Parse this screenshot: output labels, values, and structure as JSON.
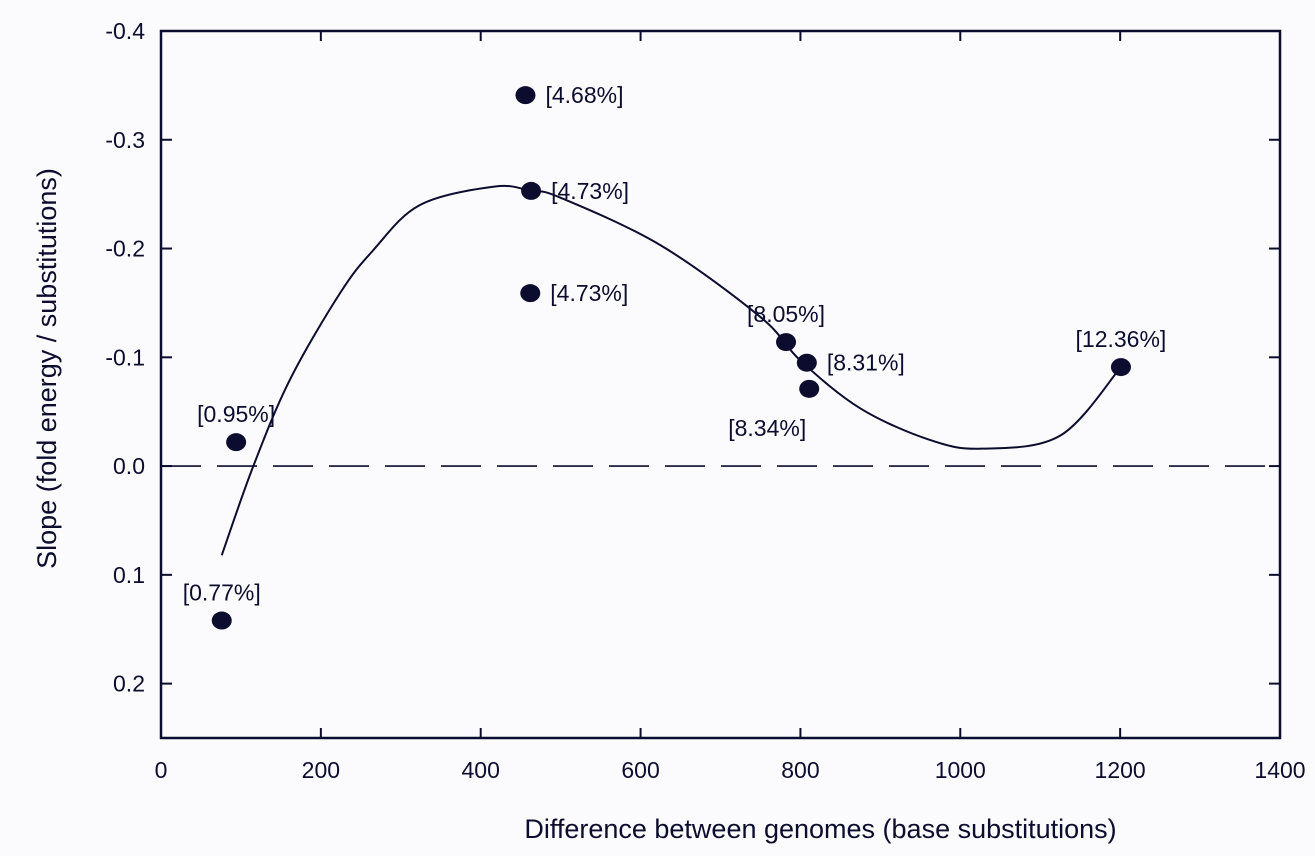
{
  "chart_data": {
    "type": "scatter",
    "title": "",
    "xlabel": "Difference between genomes (base substitutions)",
    "ylabel": "Slope (fold energy / substitutions)",
    "xlim": [
      0,
      1400
    ],
    "ylim": [
      0.25,
      -0.4
    ],
    "y_inverted": true,
    "x_ticks": [
      0,
      200,
      400,
      600,
      800,
      1000,
      1200,
      1400
    ],
    "x_tick_labels": [
      "0",
      "200",
      "400",
      "600",
      "800",
      "1000",
      "1200",
      "1400"
    ],
    "y_ticks": [
      -0.4,
      -0.3,
      -0.2,
      -0.1,
      0.0,
      0.1,
      0.2
    ],
    "y_tick_labels": [
      "-0.4",
      "-0.3",
      "-0.2",
      "-0.1",
      "0.0",
      "0.1",
      "0.2"
    ],
    "grid": false,
    "reference_line": {
      "y": 0.0,
      "style": "dashed"
    },
    "colors": {
      "ink": "#0c0c2e",
      "background": "#fbfbfd"
    },
    "series": [
      {
        "name": "points",
        "type": "scatter",
        "points": [
          {
            "x": 94,
            "y": -0.022,
            "label": "[0.95%]",
            "label_pos": "above"
          },
          {
            "x": 76,
            "y": 0.142,
            "label": "[0.77%]",
            "label_pos": "above"
          },
          {
            "x": 456,
            "y": -0.341,
            "label": "[4.68%]",
            "label_pos": "right"
          },
          {
            "x": 463,
            "y": -0.253,
            "label": "[4.73%]",
            "label_pos": "right"
          },
          {
            "x": 462,
            "y": -0.159,
            "label": "[4.73%]",
            "label_pos": "right"
          },
          {
            "x": 782,
            "y": -0.114,
            "label": "[8.05%]",
            "label_pos": "above"
          },
          {
            "x": 808,
            "y": -0.095,
            "label": "[8.31%]",
            "label_pos": "right"
          },
          {
            "x": 811,
            "y": -0.071,
            "label": "[8.34%]",
            "label_pos": "below-left"
          },
          {
            "x": 1201,
            "y": -0.091,
            "label": "[12.36%]",
            "label_pos": "above"
          }
        ]
      },
      {
        "name": "fit",
        "type": "line",
        "x": [
          76,
          115,
          161,
          224,
          265,
          324,
          418,
          463,
          499,
          625,
          750,
          800,
          875,
          962,
          1027,
          1125,
          1201
        ],
        "y": [
          0.082,
          0.001,
          -0.079,
          -0.159,
          -0.198,
          -0.24,
          -0.257,
          -0.253,
          -0.247,
          -0.203,
          -0.137,
          -0.097,
          -0.053,
          -0.024,
          -0.016,
          -0.028,
          -0.091
        ]
      }
    ]
  }
}
